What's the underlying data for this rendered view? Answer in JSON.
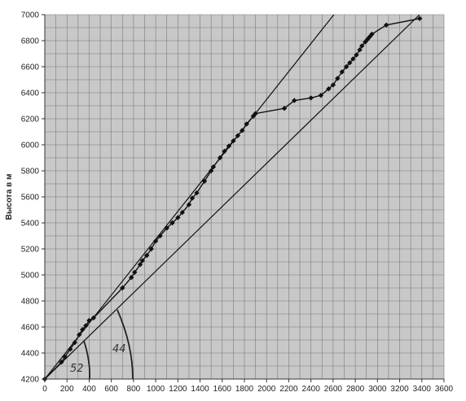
{
  "chart_data": {
    "type": "line",
    "title": "",
    "xlabel": "",
    "ylabel": "Высота в м",
    "xlim": [
      0,
      3600
    ],
    "ylim": [
      4200,
      7000
    ],
    "x_ticks": [
      0,
      200,
      400,
      600,
      800,
      1000,
      1200,
      1400,
      1600,
      1800,
      2000,
      2200,
      2400,
      2600,
      2800,
      3000,
      3200,
      3400,
      3600
    ],
    "y_ticks": [
      4200,
      4400,
      4600,
      4800,
      5000,
      5200,
      5400,
      5600,
      5800,
      6000,
      6200,
      6400,
      6600,
      6800,
      7000
    ],
    "x_minor_step": 100,
    "y_minor_step": 100,
    "grid": true,
    "plot_background": "#c8c8c8",
    "grid_color": "#7a7a7a",
    "series": [
      {
        "values": [
          [
            0,
            4200
          ],
          [
            150,
            4330
          ],
          [
            180,
            4370
          ],
          [
            230,
            4430
          ],
          [
            270,
            4480
          ],
          [
            310,
            4540
          ],
          [
            340,
            4580
          ],
          [
            370,
            4610
          ],
          [
            400,
            4650
          ],
          [
            440,
            4670
          ],
          [
            700,
            4900
          ],
          [
            780,
            4980
          ],
          [
            810,
            5020
          ],
          [
            860,
            5080
          ],
          [
            880,
            5110
          ],
          [
            920,
            5150
          ],
          [
            960,
            5200
          ],
          [
            1000,
            5260
          ],
          [
            1040,
            5300
          ],
          [
            1100,
            5360
          ],
          [
            1150,
            5400
          ],
          [
            1200,
            5440
          ],
          [
            1240,
            5480
          ],
          [
            1300,
            5540
          ],
          [
            1330,
            5590
          ],
          [
            1370,
            5630
          ],
          [
            1440,
            5720
          ],
          [
            1500,
            5800
          ],
          [
            1520,
            5830
          ],
          [
            1580,
            5900
          ],
          [
            1620,
            5950
          ],
          [
            1660,
            5990
          ],
          [
            1700,
            6030
          ],
          [
            1740,
            6070
          ],
          [
            1780,
            6110
          ],
          [
            1820,
            6160
          ],
          [
            1880,
            6220
          ],
          [
            1900,
            6240
          ],
          [
            2160,
            6280
          ],
          [
            2250,
            6340
          ],
          [
            2400,
            6360
          ],
          [
            2490,
            6380
          ],
          [
            2560,
            6430
          ],
          [
            2600,
            6460
          ],
          [
            2640,
            6510
          ],
          [
            2680,
            6560
          ],
          [
            2720,
            6600
          ],
          [
            2750,
            6630
          ],
          [
            2780,
            6660
          ],
          [
            2810,
            6690
          ],
          [
            2840,
            6730
          ],
          [
            2860,
            6760
          ],
          [
            2890,
            6790
          ],
          [
            2910,
            6810
          ],
          [
            2930,
            6830
          ],
          [
            2950,
            6850
          ],
          [
            3080,
            6920
          ],
          [
            3380,
            6970
          ]
        ]
      }
    ],
    "reference_lines": [
      {
        "from": [
          0,
          4200
        ],
        "to": [
          2700,
          7100
        ]
      },
      {
        "from": [
          0,
          4200
        ],
        "to": [
          3500,
          7100
        ]
      }
    ],
    "annotations": [
      "52",
      "44"
    ],
    "line_color": "#111111"
  }
}
